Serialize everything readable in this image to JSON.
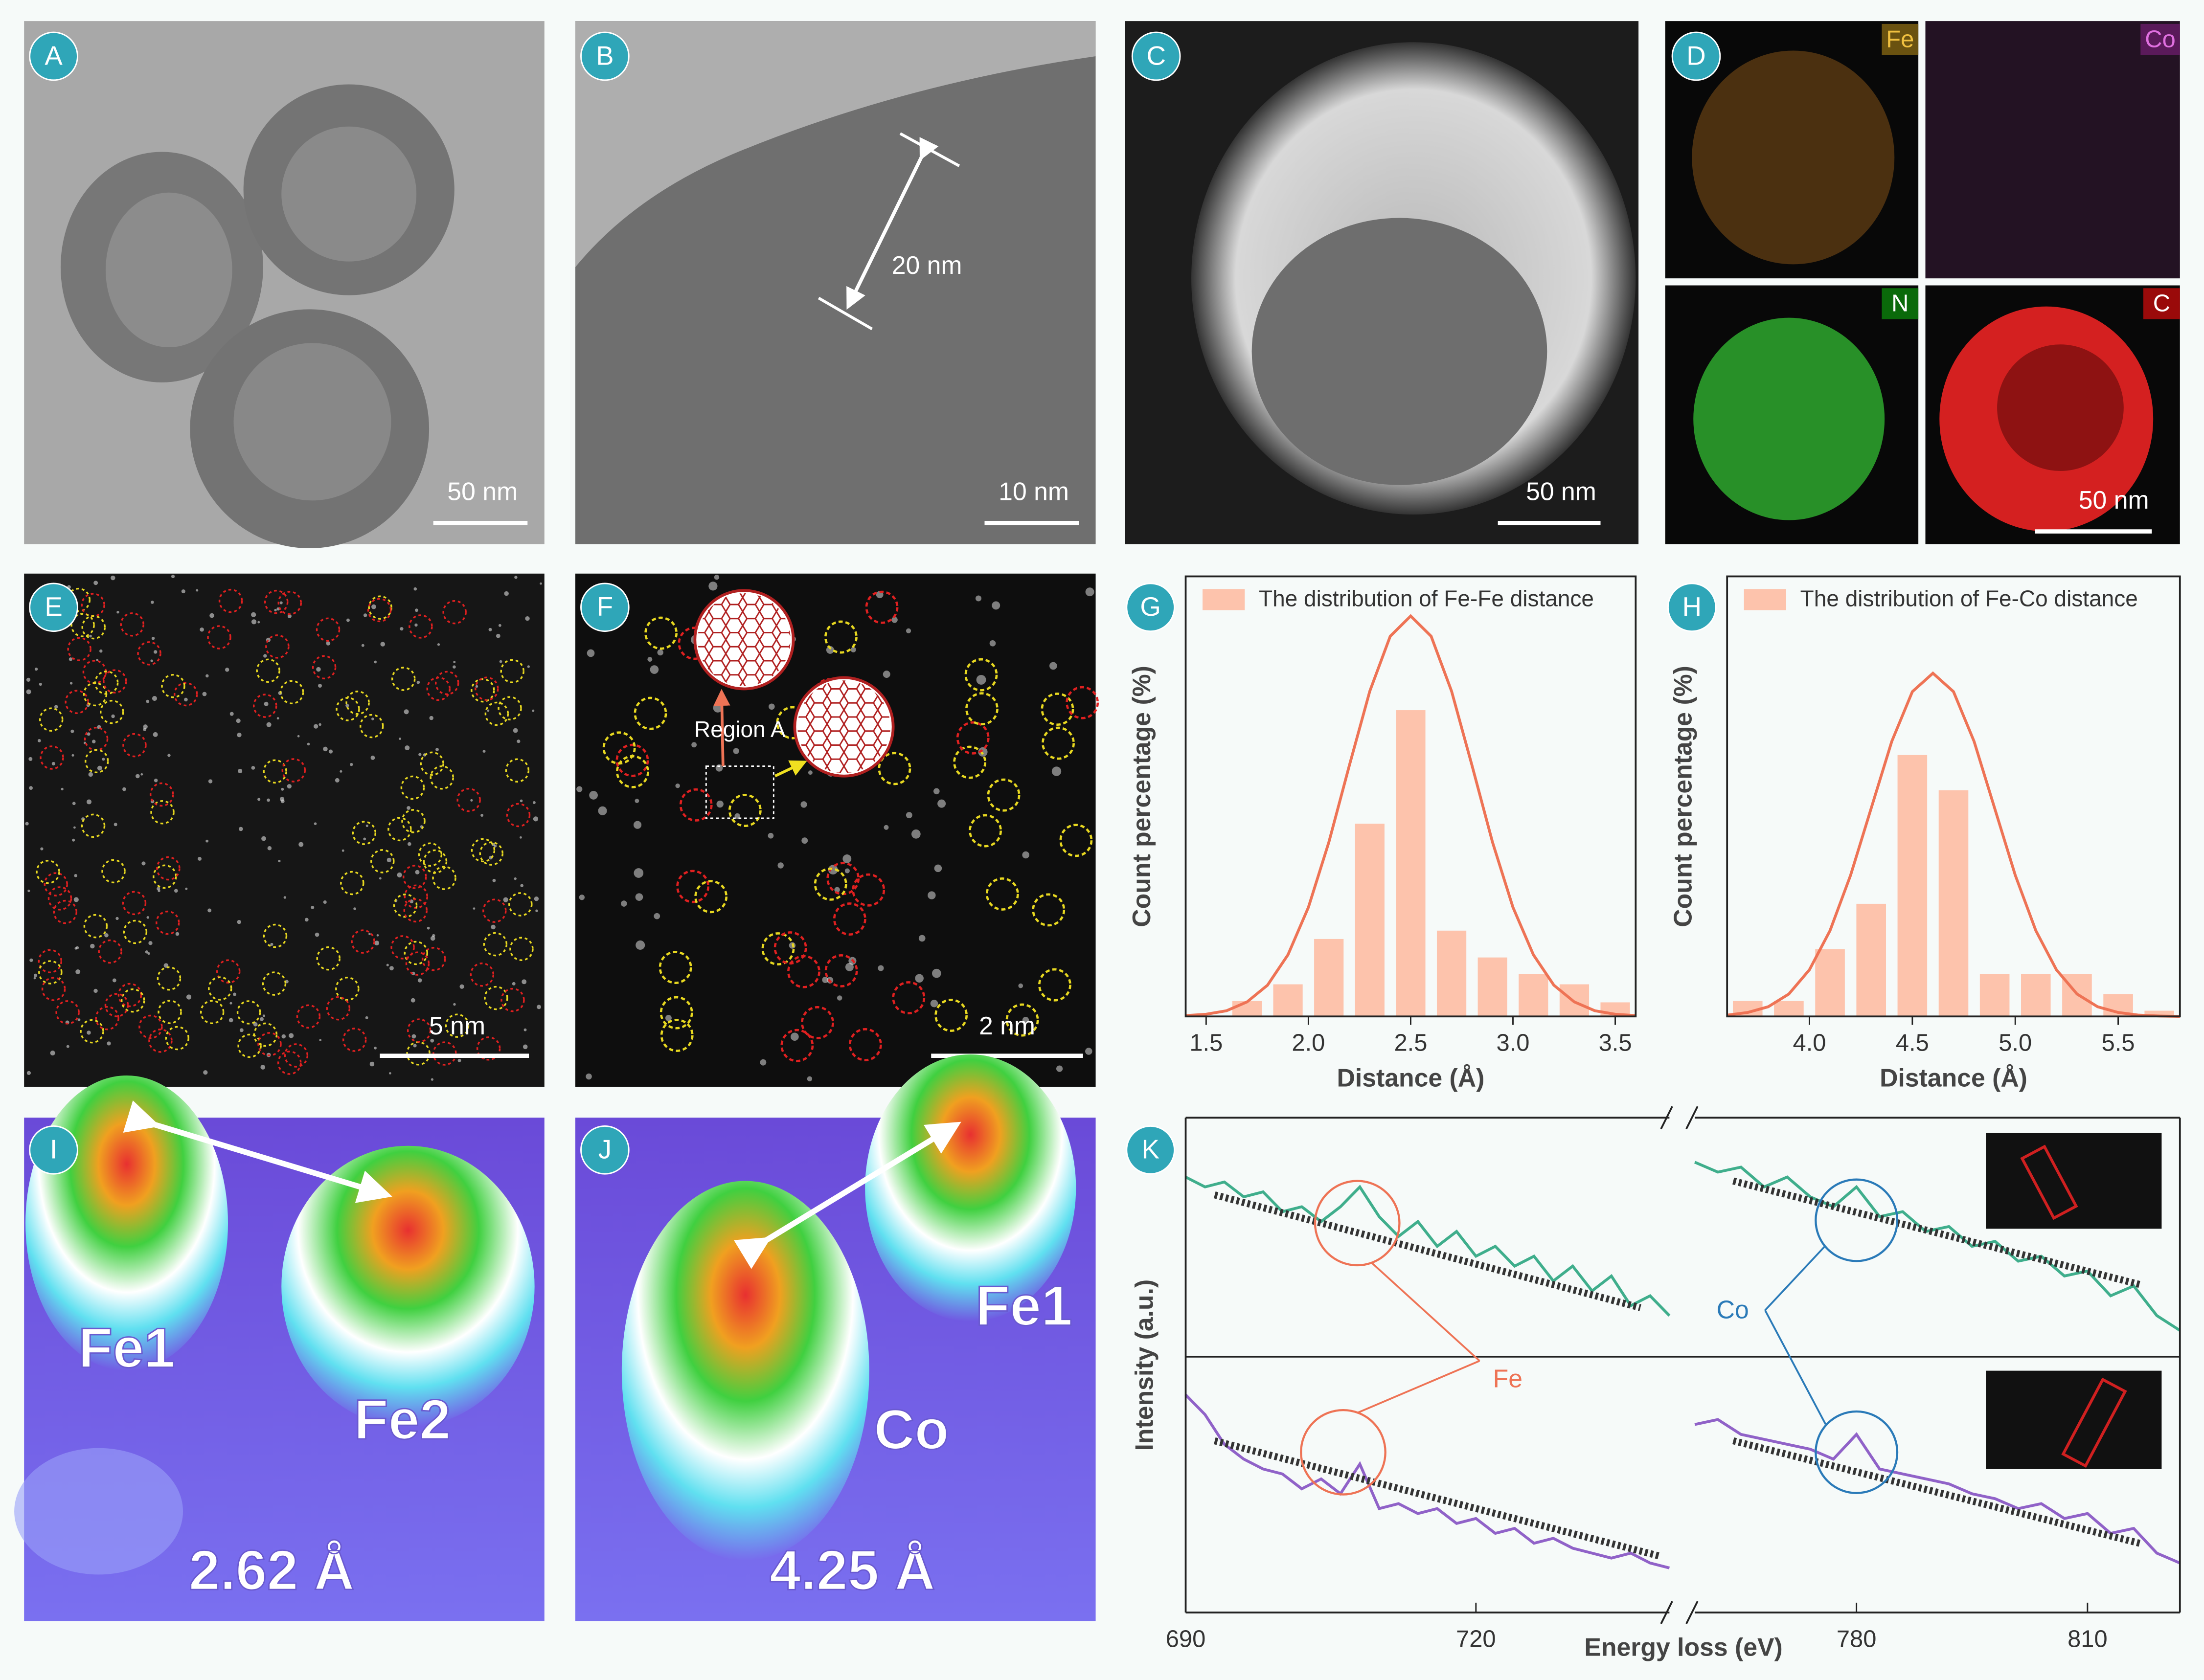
{
  "panels": [
    {
      "label": "A",
      "scale_bar": "50 nm"
    },
    {
      "label": "B",
      "scale_bar": "10 nm",
      "measure": "20 nm"
    },
    {
      "label": "C",
      "scale_bar": "50 nm"
    },
    {
      "label": "D",
      "maps": [
        "Fe",
        "Co",
        "N",
        "C"
      ],
      "scale_bar": "50 nm"
    },
    {
      "label": "E",
      "scale_bar": "5 nm"
    },
    {
      "label": "F",
      "scale_bar": "2 nm",
      "region": "Region A"
    },
    {
      "label": "G"
    },
    {
      "label": "H"
    },
    {
      "label": "I",
      "atoms": [
        "Fe1",
        "Fe2"
      ],
      "distance": "2.62 Å"
    },
    {
      "label": "J",
      "atoms": [
        "Co",
        "Fe1"
      ],
      "distance": "4.25 Å"
    },
    {
      "label": "K"
    }
  ],
  "chart_data": [
    {
      "type": "bar",
      "xlabel": "Distance (Å)",
      "ylabel": "Count percentage (%)",
      "x": [
        1.7,
        1.9,
        2.1,
        2.3,
        2.5,
        2.7,
        2.9,
        3.1,
        3.3,
        3.5
      ],
      "series": [
        {
          "name": "The distribution of Fe-Fe distance",
          "color": "#fdc3ac",
          "values": [
            3.5,
            7.3,
            17.6,
            43.8,
            69.6,
            19.5,
            13.4,
            9.6,
            7.3,
            3.2
          ]
        }
      ],
      "fit": {
        "color": "#ee7355",
        "x": [
          1.4,
          1.5,
          1.6,
          1.7,
          1.8,
          1.9,
          2.0,
          2.1,
          2.2,
          2.3,
          2.4,
          2.5,
          2.6,
          2.7,
          2.8,
          2.9,
          3.0,
          3.1,
          3.2,
          3.3,
          3.4,
          3.5,
          3.6
        ],
        "values": [
          0.2,
          0.5,
          1.3,
          3.3,
          7.1,
          14.0,
          24.8,
          39.6,
          57.0,
          73.9,
          86.4,
          91,
          86.4,
          73.9,
          57.0,
          39.6,
          24.8,
          14.0,
          7.1,
          3.3,
          1.3,
          0.5,
          0.2
        ]
      },
      "xlim": [
        1.4,
        3.6
      ],
      "xticks": [
        1.5,
        {
          "value": 2,
          "label": "2.0"
        },
        2.5,
        {
          "value": 3,
          "label": "3.0"
        },
        3.5
      ],
      "ylim": [
        0,
        100
      ]
    },
    {
      "type": "bar",
      "xlabel": "Distance (Å)",
      "ylabel": "Count percentage (%)",
      "x": [
        3.7,
        3.9,
        4.1,
        4.3,
        4.5,
        4.7,
        4.9,
        5.1,
        5.3,
        5.5,
        5.7
      ],
      "series": [
        {
          "name": "The distribution of Fe-Co distance",
          "color": "#fdc3ac",
          "values": [
            3.5,
            3.5,
            15.3,
            25.6,
            59.4,
            51.4,
            9.6,
            9.6,
            9.6,
            5.1,
            1.3
          ]
        }
      ],
      "fit": {
        "color": "#ee7355",
        "x": [
          3.6,
          3.7,
          3.8,
          3.9,
          4.0,
          4.1,
          4.2,
          4.3,
          4.4,
          4.5,
          4.6,
          4.7,
          4.8,
          4.9,
          5.0,
          5.1,
          5.2,
          5.3,
          5.4,
          5.5,
          5.6,
          5.7,
          5.8
        ],
        "values": [
          0.3,
          0.9,
          2.2,
          5.1,
          10.6,
          19.5,
          32.1,
          47.3,
          62.5,
          73.8,
          78,
          73.8,
          62.5,
          47.3,
          32.1,
          19.5,
          10.6,
          5.1,
          2.2,
          0.9,
          0.3,
          0.1,
          0.0
        ]
      },
      "xlim": [
        3.6,
        5.8
      ],
      "xticks": [
        {
          "value": 4,
          "label": "4.0"
        },
        4.5,
        {
          "value": 5,
          "label": "5.0"
        },
        5.5
      ],
      "ylim": [
        0,
        100
      ]
    },
    {
      "type": "line",
      "xlabel": "Energy loss (eV)",
      "ylabel": "Intensity (a.u.)",
      "ylim": [
        0,
        100
      ],
      "segments": [
        {
          "xlim": [
            690,
            740
          ],
          "xticks": [
            690,
            720
          ],
          "x": [
            690,
            692,
            694,
            696,
            698,
            700,
            702,
            704,
            706,
            708,
            710,
            712,
            714,
            716,
            718,
            720,
            722,
            724,
            726,
            728,
            730,
            732,
            734,
            736,
            738,
            740
          ]
        },
        {
          "xlim": [
            759,
            822
          ],
          "xticks": [
            780,
            810
          ],
          "x": [
            759,
            762,
            765,
            768,
            771,
            774,
            777,
            780,
            783,
            786,
            789,
            792,
            795,
            798,
            801,
            804,
            807,
            810,
            813,
            816,
            819,
            822
          ]
        }
      ],
      "series": [
        {
          "segment": 0,
          "color": "#3fae8c",
          "values": [
            88,
            86,
            87,
            84,
            85,
            81,
            82,
            79,
            82,
            86,
            80,
            76,
            79,
            74,
            77,
            72,
            74,
            70,
            72,
            67,
            70,
            65,
            68,
            62,
            64,
            60
          ]
        },
        {
          "segment": 1,
          "color": "#3fae8c",
          "values": [
            91,
            89,
            90,
            86,
            88,
            84,
            82,
            86,
            80,
            81,
            77,
            78,
            74,
            75,
            71,
            72,
            68,
            69,
            64,
            66,
            60,
            57
          ]
        },
        {
          "segment": 0,
          "color": "#9062c8",
          "values": [
            44,
            40,
            34,
            31,
            29,
            28,
            25,
            27,
            24,
            30,
            21,
            22,
            20,
            21,
            18,
            19,
            16,
            17,
            14,
            15,
            13,
            12,
            11,
            12,
            10,
            9
          ]
        },
        {
          "segment": 1,
          "color": "#9062c8",
          "values": [
            38,
            39,
            36,
            35,
            34,
            33,
            31,
            36,
            29,
            28,
            27,
            26,
            24,
            23,
            21,
            22,
            19,
            20,
            16,
            17,
            12,
            10
          ]
        }
      ],
      "fits": [
        {
          "segment": 0,
          "x": [
            693,
            737
          ],
          "values": [
            84.4,
            61.6
          ]
        },
        {
          "segment": 1,
          "x": [
            764,
            817
          ],
          "values": [
            87.2,
            66.2
          ]
        },
        {
          "segment": 0,
          "x": [
            693,
            739
          ],
          "values": [
            34.7,
            11.4
          ]
        },
        {
          "segment": 1,
          "x": [
            764,
            817
          ],
          "values": [
            34.7,
            13.9
          ]
        }
      ],
      "annotations": [
        {
          "text": "Fe",
          "color": "#ee7355"
        },
        {
          "text": "Co",
          "color": "#2a7ab8"
        }
      ]
    }
  ]
}
